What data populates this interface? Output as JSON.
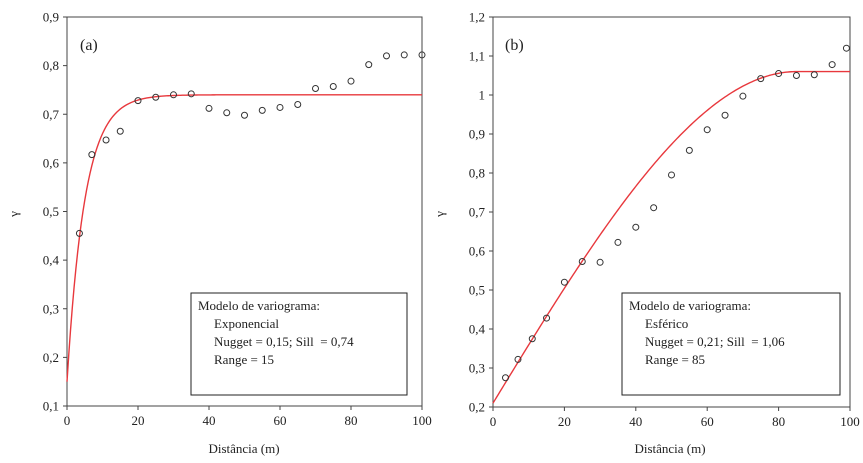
{
  "chart_data": [
    {
      "type": "scatter",
      "panel_label": "(a)",
      "xlabel": "Distância (m)",
      "ylabel": "γ",
      "xlim": [
        0,
        100
      ],
      "ylim": [
        0.1,
        0.9
      ],
      "xticks": [
        "0",
        "20",
        "40",
        "60",
        "80",
        "100"
      ],
      "yticks": [
        "0,1",
        "0,2",
        "0,3",
        "0,4",
        "0,5",
        "0,6",
        "0,7",
        "0,8",
        "0,9"
      ],
      "grid": false,
      "legend_placement": "bottom-right",
      "points": {
        "x": [
          3.5,
          7,
          11,
          15,
          20,
          25,
          30,
          35,
          40,
          45,
          50,
          55,
          60,
          65,
          70,
          75,
          80,
          85,
          90,
          95,
          100
        ],
        "y": [
          0.455,
          0.617,
          0.647,
          0.665,
          0.728,
          0.735,
          0.74,
          0.742,
          0.712,
          0.703,
          0.698,
          0.708,
          0.714,
          0.72,
          0.753,
          0.757,
          0.768,
          0.802,
          0.82,
          0.822,
          0.822
        ]
      },
      "model": {
        "kind": "exponential",
        "nugget": 0.15,
        "sill": 0.74,
        "range": 15,
        "color": "#e8383d"
      },
      "legend_lines": [
        "Modelo de variograma:",
        "Exponencial",
        "Nugget = 0,15; Sill  = 0,74",
        "Range = 15"
      ]
    },
    {
      "type": "scatter",
      "panel_label": "(b)",
      "xlabel": "Distância (m)",
      "ylabel": "γ",
      "xlim": [
        0,
        100
      ],
      "ylim": [
        0.2,
        1.2
      ],
      "xticks": [
        "0",
        "20",
        "40",
        "60",
        "80",
        "100"
      ],
      "yticks": [
        "0,2",
        "0,3",
        "0,4",
        "0,5",
        "0,6",
        "0,7",
        "0,8",
        "0,9",
        "1",
        "1,1",
        "1,2"
      ],
      "grid": false,
      "legend_placement": "bottom-right",
      "points": {
        "x": [
          3.5,
          7,
          11,
          15,
          20,
          25,
          30,
          35,
          40,
          45,
          50,
          55,
          60,
          65,
          70,
          75,
          80,
          85,
          90,
          95,
          99
        ],
        "y": [
          0.275,
          0.322,
          0.375,
          0.428,
          0.52,
          0.573,
          0.571,
          0.622,
          0.661,
          0.711,
          0.795,
          0.858,
          0.911,
          0.948,
          0.997,
          1.042,
          1.055,
          1.05,
          1.052,
          1.078,
          1.12
        ]
      },
      "model": {
        "kind": "spherical",
        "nugget": 0.21,
        "sill": 1.06,
        "range": 85,
        "color": "#e8383d"
      },
      "legend_lines": [
        "Modelo de variograma:",
        "Esférico",
        "Nugget = 0,21; Sill  = 1,06",
        "Range = 85"
      ]
    }
  ]
}
